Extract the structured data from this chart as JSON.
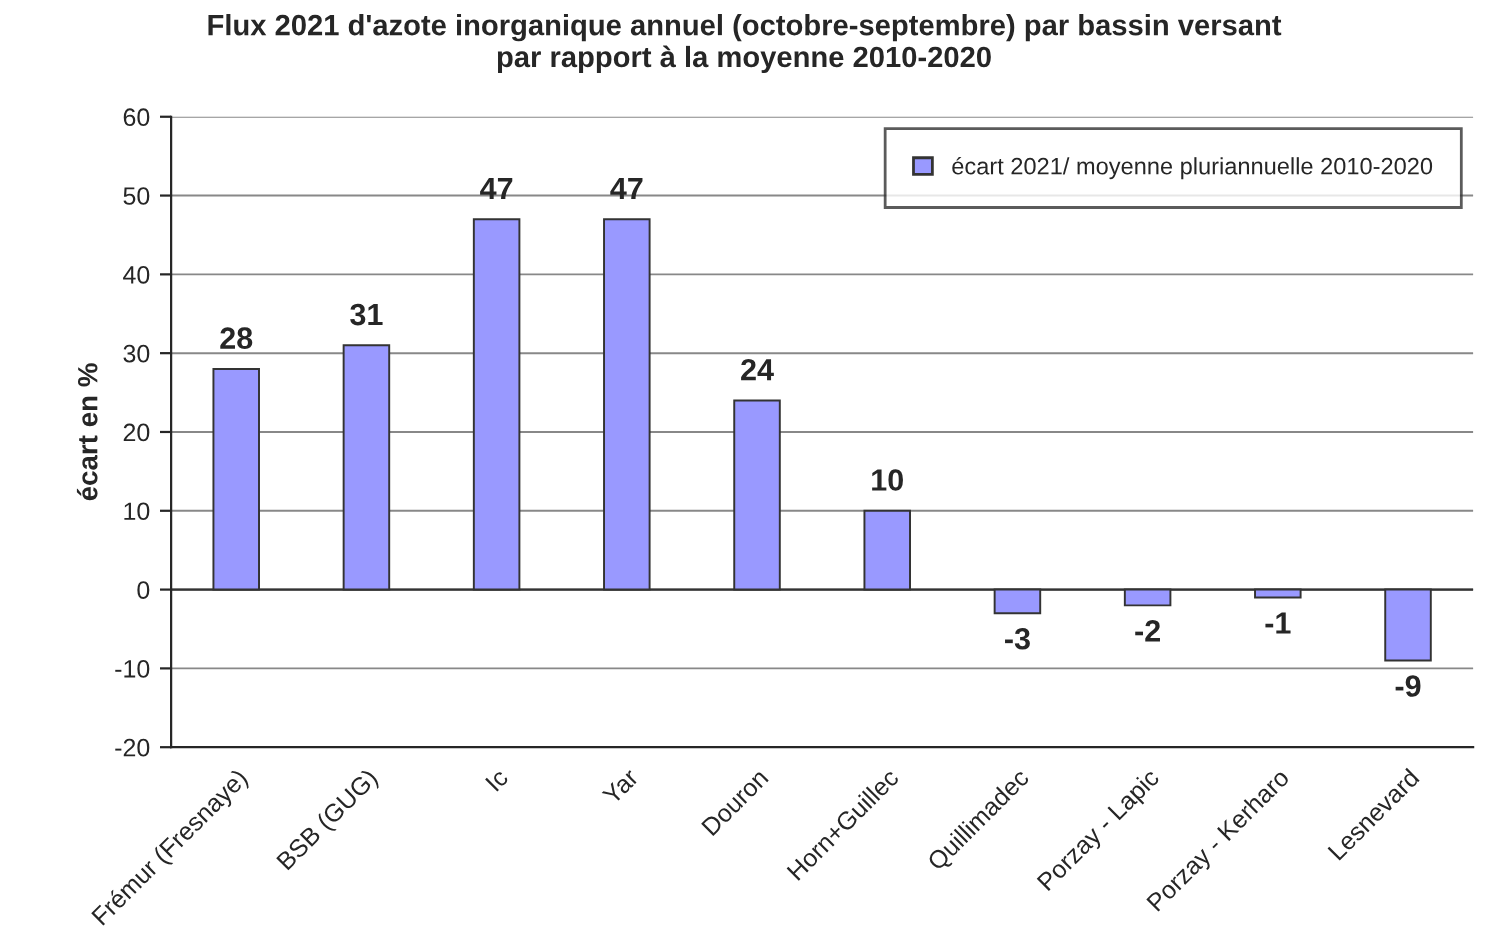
{
  "chart_data": {
    "type": "bar",
    "title": "Flux 2021 d'azote inorganique annuel (octobre-septembre) par bassin versant\npar rapport à la moyenne 2010-2020",
    "ylabel": "écart en %",
    "categories": [
      "Frémur (Fresnaye)",
      "BSB (GUG)",
      "Ic",
      "Yar",
      "Douron",
      "Horn+Guillec",
      "Quillimadec",
      "Porzay - Lapic",
      "Porzay - Kerharo",
      "Lesnevard"
    ],
    "series": [
      {
        "name": "écart 2021/ moyenne pluriannuelle 2010-2020",
        "color": "#9999ff",
        "values": [
          28,
          31,
          47,
          47,
          24,
          10,
          -3,
          -2,
          -1,
          -9
        ]
      }
    ],
    "ylim": [
      -20,
      60
    ],
    "yticks": [
      -20,
      -10,
      0,
      10,
      20,
      30,
      40,
      50,
      60
    ],
    "grid": "y",
    "legend": "top right",
    "data_labels": true
  }
}
